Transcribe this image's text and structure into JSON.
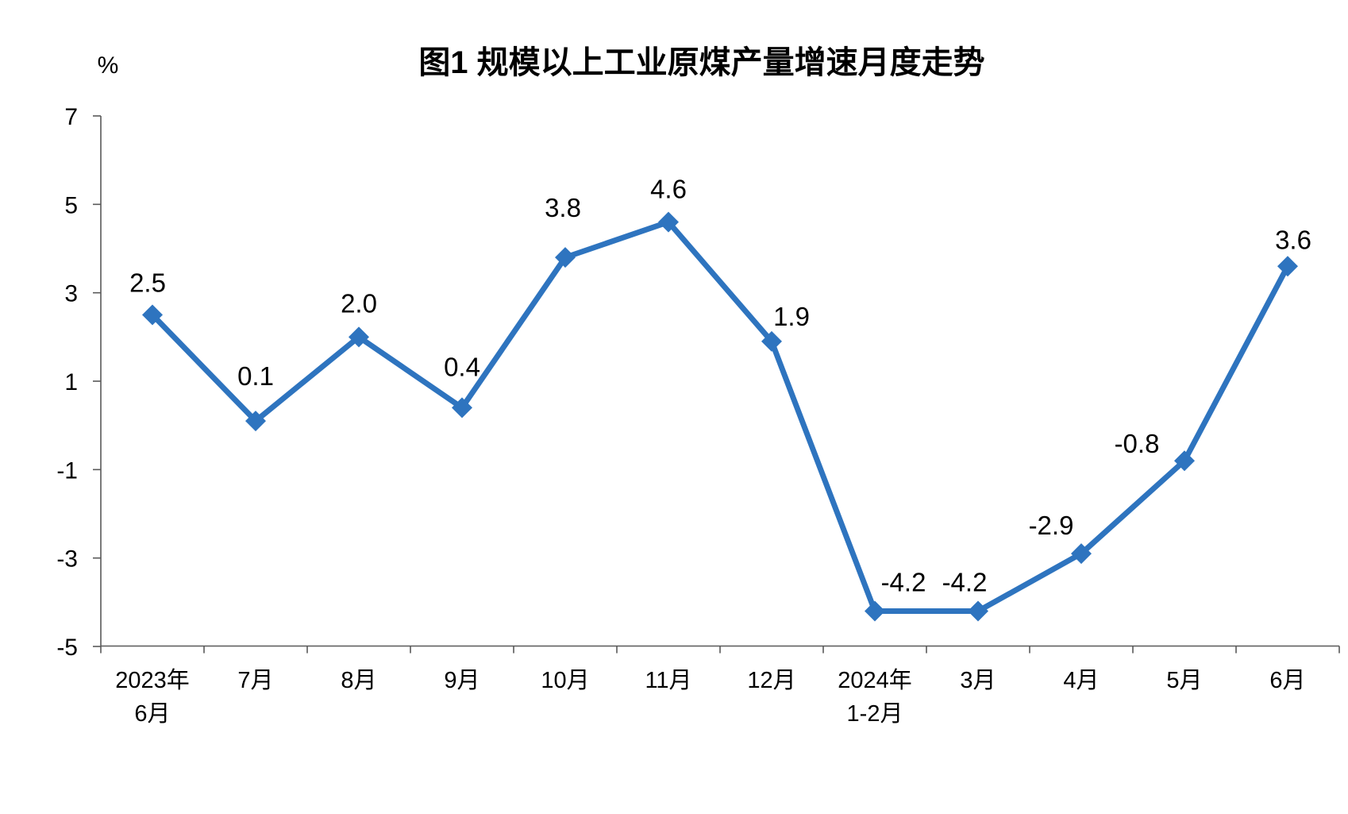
{
  "chart_data": {
    "type": "line",
    "title": "图1  规模以上工业原煤产量增速月度走势",
    "unit_label": "%",
    "categories": [
      [
        "2023年",
        "6月"
      ],
      [
        "7月"
      ],
      [
        "8月"
      ],
      [
        "9月"
      ],
      [
        "10月"
      ],
      [
        "11月"
      ],
      [
        "12月"
      ],
      [
        "2024年",
        "1-2月"
      ],
      [
        "3月"
      ],
      [
        "4月"
      ],
      [
        "5月"
      ],
      [
        "6月"
      ]
    ],
    "values": [
      2.5,
      0.1,
      2.0,
      0.4,
      3.8,
      4.6,
      1.9,
      -4.2,
      -4.2,
      -2.9,
      -0.8,
      3.6
    ],
    "point_labels": [
      "2.5",
      "0.1",
      "2.0",
      "0.4",
      "3.8",
      "4.6",
      "1.9",
      "-4.2",
      "-4.2",
      "-2.9",
      "-0.8",
      "3.6"
    ],
    "y_ticks": [
      7,
      5,
      3,
      1,
      -1,
      -3,
      -5
    ],
    "ylim": [
      -5,
      7
    ],
    "xlabel": "",
    "ylabel": "%",
    "grid": false,
    "legend_position": "none",
    "marker": "diamond",
    "line_color": "#2E74BF",
    "text_color": "#000000",
    "axis_color": "#595959"
  }
}
